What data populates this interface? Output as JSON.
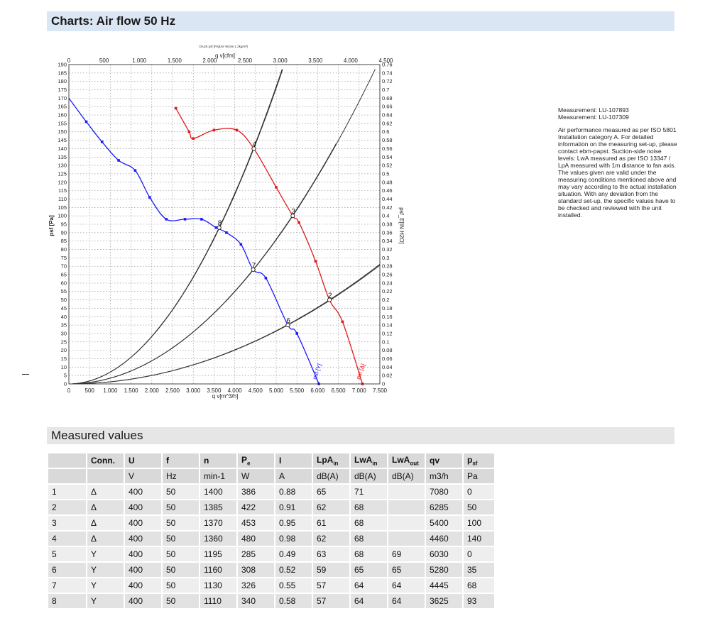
{
  "charts_header": {
    "title": "Charts: Air flow 50 Hz"
  },
  "measured_header": {
    "title": "Measured values"
  },
  "notes": {
    "measurements": [
      "Measurement: LU-107893",
      "Measurement: LU-107309"
    ],
    "description": "Air performance measured as per ISO 5801 Installation category A. For detailed information on the measuring set-up, please contact ebm-papst. Suction-side noise levels: LwA measured as per ISO 13347 / LpA measured with 1m distance to fan axis. The values given are valid under the measuring conditions mentioned above and may vary according to the actual installation situation. With any deviation from the standard set-up, the specific values have to be checked and reviewed with the unit installed."
  },
  "chart_data": {
    "type": "line",
    "top_caption": "Druck psf [Pa](Air Wrote 1.2kg/m³)",
    "xlabel": "q v[m^3/h]",
    "xlabel_top": "q v[cfm]",
    "ylabel": "psf [Pa]",
    "ylabel_right": "psf_E[IN H2O]",
    "xlim": [
      0,
      7500
    ],
    "ylim": [
      0,
      190
    ],
    "x_ticks": [
      "0",
      "500",
      "1.000",
      "1.500",
      "2.000",
      "2.500",
      "3.000",
      "3.500",
      "4.000",
      "4.500",
      "5.000",
      "5.500",
      "6.000",
      "6.500",
      "7.000",
      "7.500"
    ],
    "x_ticks_top": [
      "0",
      "500",
      "1.000",
      "1.500",
      "2.000",
      "2.500",
      "3.000",
      "3.500",
      "4.000",
      "4.500"
    ],
    "x_top_max": 4500,
    "y_ticks": [
      "0",
      "5",
      "10",
      "15",
      "20",
      "25",
      "30",
      "35",
      "40",
      "45",
      "50",
      "55",
      "60",
      "65",
      "70",
      "75",
      "80",
      "85",
      "90",
      "95",
      "100",
      "105",
      "110",
      "115",
      "120",
      "125",
      "130",
      "135",
      "140",
      "145",
      "150",
      "155",
      "160",
      "165",
      "170",
      "175",
      "180",
      "185",
      "190"
    ],
    "y_ticks_right": [
      "0",
      "0.02",
      "0.04",
      "0.06",
      "0.08",
      "0.1",
      "0.12",
      "0.14",
      "0.16",
      "0.18",
      "0.2",
      "0.22",
      "0.24",
      "0.26",
      "0.28",
      "0.3",
      "0.32",
      "0.34",
      "0.36",
      "0.38",
      "0.4",
      "0.42",
      "0.44",
      "0.46",
      "0.48",
      "0.5",
      "0.52",
      "0.54",
      "0.56",
      "0.58",
      "0.6",
      "0.62",
      "0.64",
      "0.66",
      "0.68",
      "0.7",
      "0.72",
      "0.74",
      "0.76"
    ],
    "y_right_max": 0.76,
    "grid": true,
    "series": [
      {
        "name": "psf [Y]",
        "color": "#1a1aff",
        "points": [
          [
            0,
            170
          ],
          [
            420,
            156
          ],
          [
            800,
            144
          ],
          [
            1200,
            133
          ],
          [
            1600,
            127
          ],
          [
            1950,
            111
          ],
          [
            2350,
            98
          ],
          [
            2800,
            98
          ],
          [
            3200,
            98
          ],
          [
            3550,
            93
          ],
          [
            3800,
            90
          ],
          [
            4150,
            83
          ],
          [
            4445,
            68
          ],
          [
            4750,
            63
          ],
          [
            5280,
            35
          ],
          [
            5500,
            30
          ],
          [
            6030,
            0
          ]
        ]
      },
      {
        "name": "psf [Δ]",
        "color": "#e01a1a",
        "points": [
          [
            2580,
            164
          ],
          [
            2900,
            150
          ],
          [
            3000,
            146
          ],
          [
            3500,
            151
          ],
          [
            4050,
            151
          ],
          [
            4460,
            140
          ],
          [
            5000,
            117
          ],
          [
            5400,
            100
          ],
          [
            5550,
            96
          ],
          [
            5950,
            73
          ],
          [
            6285,
            50
          ],
          [
            6600,
            37
          ],
          [
            7080,
            0
          ]
        ]
      }
    ],
    "system_curves": [
      {
        "label": "8",
        "point": [
          3625,
          93
        ],
        "color": "#333333"
      },
      {
        "label": "4",
        "point": [
          4460,
          140
        ],
        "color": "#333333"
      },
      {
        "label": "7",
        "point": [
          4445,
          68
        ],
        "color": "#333333"
      },
      {
        "label": "3",
        "point": [
          5400,
          100
        ],
        "color": "#333333"
      },
      {
        "label": "6",
        "point": [
          5280,
          35
        ],
        "color": "#333333"
      },
      {
        "label": "2",
        "point": [
          6285,
          50
        ],
        "color": "#333333"
      }
    ],
    "series_labels": [
      {
        "text": "psf [Y]",
        "color": "#1a1aff"
      },
      {
        "text": "psf [Δ]",
        "color": "#e01a1a"
      }
    ]
  },
  "table": {
    "headers": [
      {
        "main": "",
        "sub": ""
      },
      {
        "main": "Conn.",
        "sub": ""
      },
      {
        "main": "U",
        "sub": ""
      },
      {
        "main": "f",
        "sub": ""
      },
      {
        "main": "n",
        "sub": ""
      },
      {
        "main": "P",
        "sub": "e"
      },
      {
        "main": "I",
        "sub": ""
      },
      {
        "main": "LpA",
        "sub": "in"
      },
      {
        "main": "LwA",
        "sub": "in"
      },
      {
        "main": "LwA",
        "sub": "out"
      },
      {
        "main": "qv",
        "sub": ""
      },
      {
        "main": "p",
        "sub": "sf"
      }
    ],
    "units": [
      "",
      "",
      "V",
      "Hz",
      "min-1",
      "W",
      "A",
      "dB(A)",
      "dB(A)",
      "dB(A)",
      "m3/h",
      "Pa"
    ],
    "rows": [
      [
        "1",
        "Δ",
        "400",
        "50",
        "1400",
        "386",
        "0.88",
        "65",
        "71",
        "",
        "7080",
        "0"
      ],
      [
        "2",
        "Δ",
        "400",
        "50",
        "1385",
        "422",
        "0.91",
        "62",
        "68",
        "",
        "6285",
        "50"
      ],
      [
        "3",
        "Δ",
        "400",
        "50",
        "1370",
        "453",
        "0.95",
        "61",
        "68",
        "",
        "5400",
        "100"
      ],
      [
        "4",
        "Δ",
        "400",
        "50",
        "1360",
        "480",
        "0.98",
        "62",
        "68",
        "",
        "4460",
        "140"
      ],
      [
        "5",
        "Y",
        "400",
        "50",
        "1195",
        "285",
        "0.49",
        "63",
        "68",
        "69",
        "6030",
        "0"
      ],
      [
        "6",
        "Y",
        "400",
        "50",
        "1160",
        "308",
        "0.52",
        "59",
        "65",
        "65",
        "5280",
        "35"
      ],
      [
        "7",
        "Y",
        "400",
        "50",
        "1130",
        "326",
        "0.55",
        "57",
        "64",
        "64",
        "4445",
        "68"
      ],
      [
        "8",
        "Y",
        "400",
        "50",
        "1110",
        "340",
        "0.58",
        "57",
        "64",
        "64",
        "3625",
        "93"
      ]
    ]
  }
}
